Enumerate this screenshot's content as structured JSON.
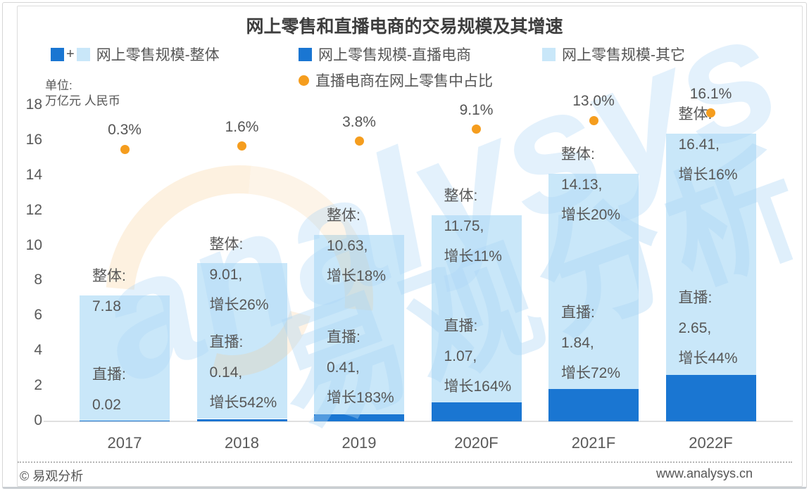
{
  "title": "网上零售和直播电商的交易规模及其增速",
  "unit": {
    "line1": "单位:",
    "line2": "万亿元 人民币"
  },
  "legend": {
    "overall": {
      "label": "网上零售规模-整体",
      "plus": "+",
      "marker": "dual-square-icon"
    },
    "live": {
      "label": "网上零售规模-直播电商",
      "marker": "dark-blue-square-icon"
    },
    "other": {
      "label": "网上零售规模-其它",
      "marker": "light-blue-square-icon"
    },
    "share": {
      "label": "直播电商在网上零售中占比",
      "marker": "orange-dot-icon"
    }
  },
  "colors": {
    "live_blue": "#1a76d2",
    "other_blue": "#c9e7f9",
    "share_orange": "#f59d1e",
    "text_gray": "#575757"
  },
  "y_axis": {
    "ticks": [
      18,
      16,
      14,
      12,
      10,
      8,
      6,
      4,
      2,
      0
    ]
  },
  "bars": [
    {
      "category": "2017",
      "pct_label": "0.3%",
      "zhengti_lines": [
        "整体:",
        "7.18"
      ],
      "zhibo_lines": [
        "直播:",
        "0.02"
      ]
    },
    {
      "category": "2018",
      "pct_label": "1.6%",
      "zhengti_lines": [
        "整体:",
        "9.01,",
        "增长26%"
      ],
      "zhibo_lines": [
        "直播:",
        "0.14,",
        "增长542%"
      ]
    },
    {
      "category": "2019",
      "pct_label": "3.8%",
      "zhengti_lines": [
        "整体:",
        "10.63,",
        "增长18%"
      ],
      "zhibo_lines": [
        "直播:",
        "0.41,",
        "增长183%"
      ]
    },
    {
      "category": "2020F",
      "pct_label": "9.1%",
      "zhengti_lines": [
        "整体:",
        "11.75,",
        "增长11%"
      ],
      "zhibo_lines": [
        "直播:",
        "1.07,",
        "增长164%"
      ]
    },
    {
      "category": "2021F",
      "pct_label": "13.0%",
      "zhengti_lines": [
        "整体:",
        "14.13,",
        "增长20%"
      ],
      "zhibo_lines": [
        "直播:",
        "1.84,",
        "增长72%"
      ]
    },
    {
      "category": "2022F",
      "pct_label": "16.1%",
      "zhengti_lines": [
        "整体:",
        "16.41,",
        "增长16%"
      ],
      "zhibo_lines": [
        "直播:",
        "2.65,",
        "增长44%"
      ]
    }
  ],
  "chart_data": {
    "type": "bar",
    "stacked": true,
    "title": "网上零售和直播电商的交易规模及其增速",
    "xlabel": "",
    "ylabel": "万亿元 人民币",
    "ylim": [
      0,
      18
    ],
    "grid": false,
    "legend_position": "top",
    "categories": [
      "2017",
      "2018",
      "2019",
      "2020F",
      "2021F",
      "2022F"
    ],
    "series": [
      {
        "name": "网上零售规模-直播电商",
        "color": "#1a76d2",
        "values": [
          0.02,
          0.14,
          0.41,
          1.07,
          1.84,
          2.65
        ]
      },
      {
        "name": "网上零售规模-其它",
        "color": "#c9e7f9",
        "values": [
          7.16,
          8.87,
          10.22,
          10.68,
          12.29,
          13.76
        ]
      }
    ],
    "totals": [
      7.18,
      9.01,
      10.63,
      11.75,
      14.13,
      16.41
    ],
    "total_growth_pct": [
      null,
      26,
      18,
      11,
      20,
      16
    ],
    "live_growth_pct": [
      null,
      542,
      183,
      164,
      72,
      44
    ],
    "share_line": {
      "name": "直播电商在网上零售中占比",
      "color": "#f59d1e",
      "values_pct": [
        0.3,
        1.6,
        3.8,
        9.1,
        13.0,
        16.1
      ]
    }
  },
  "watermark": {
    "latin": "analysys",
    "cjk": "易观分析"
  },
  "footer": {
    "copyright": "© 易观分析",
    "website": "www.analysys.cn"
  }
}
